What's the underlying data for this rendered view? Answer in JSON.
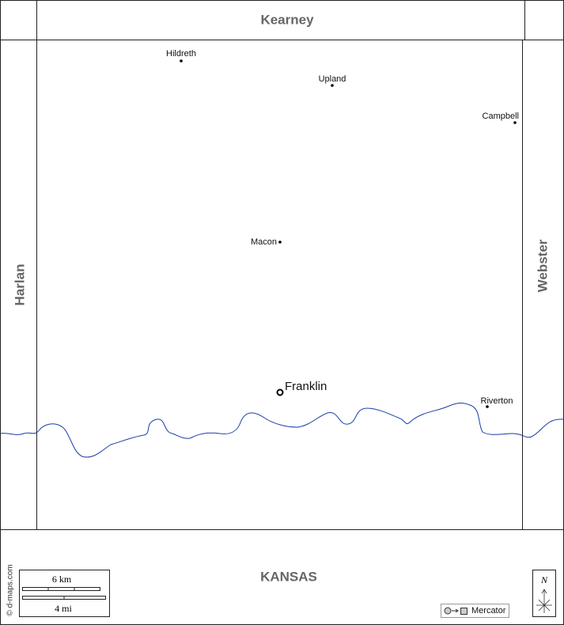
{
  "neighbors": {
    "north": "Kearney",
    "west": "Harlan",
    "east": "Webster",
    "south": "KANSAS"
  },
  "towns": [
    {
      "name": "Hildreth"
    },
    {
      "name": "Upland"
    },
    {
      "name": "Campbell"
    },
    {
      "name": "Macon"
    },
    {
      "name": "Riverton"
    }
  ],
  "county_seat": "Franklin",
  "scale": {
    "km": "6 km",
    "mi": "4 mi"
  },
  "credit": "© d-maps.com",
  "projection": "Mercator",
  "north_arrow": "N"
}
